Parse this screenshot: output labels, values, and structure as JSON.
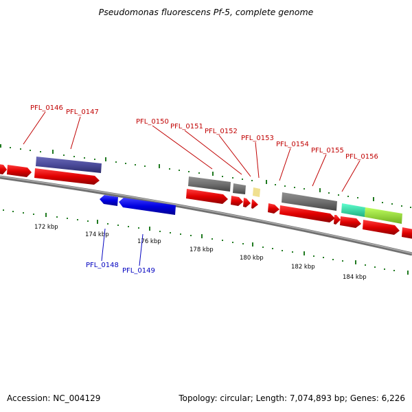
{
  "title": "Pseudomonas fluorescens Pf-5, complete genome",
  "footer": {
    "accession": "Accession: NC_004129",
    "summary": "Topology: circular; Length: 7,074,893 bp; Genes: 6,226"
  },
  "colors": {
    "forward_gene": "#e00000",
    "reverse_gene": "#0000e0",
    "backbone": "#808080",
    "tick": "#207a20",
    "label_forward": "#c00000",
    "label_reverse": "#0000c0",
    "feature_purple": "#4b4b9a",
    "feature_gray": "#707070",
    "feature_pale_yellow": "#f0e090",
    "feature_teal": "#40e0b0",
    "feature_lime": "#a0e040"
  },
  "scale_labels": [
    "172 kbp",
    "174 kbp",
    "176 kbp",
    "178 kbp",
    "180 kbp",
    "182 kbp",
    "184 kbp"
  ],
  "gene_labels_top": [
    "PFL_0146",
    "PFL_0147",
    "PFL_0150",
    "PFL_0151",
    "PFL_0152",
    "PFL_0153",
    "PFL_0154",
    "PFL_0155",
    "PFL_0156"
  ],
  "gene_labels_bottom": [
    "PFL_0148",
    "PFL_0149"
  ]
}
